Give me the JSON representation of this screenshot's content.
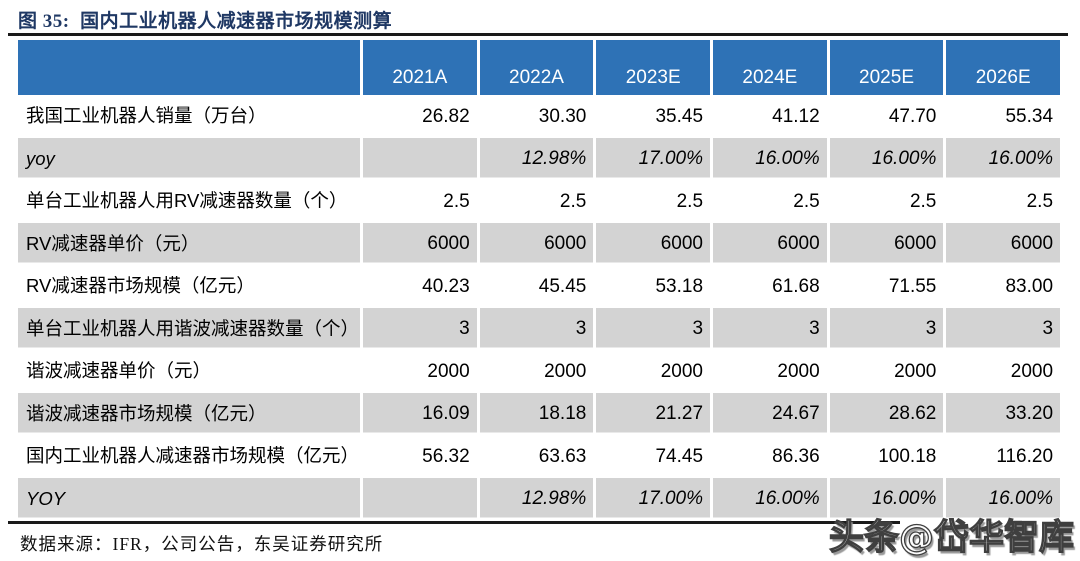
{
  "figure": {
    "title": "图 35:  国内工业机器人减速器市场规模测算",
    "source": "数据来源：IFR，公司公告，东吴证券研究所",
    "watermark": "头条@岱华智库"
  },
  "colors": {
    "header_bg": "#2E72B6",
    "shaded_row_bg": "#D3D3D3",
    "title_color": "#1F3864",
    "rule_color": "#1a1a1a"
  },
  "chart_data": {
    "type": "table",
    "title": "国内工业机器人减速器市场规模测算",
    "columns": [
      "",
      "2021A",
      "2022A",
      "2023E",
      "2024E",
      "2025E",
      "2026E"
    ],
    "rows": [
      {
        "label": "我国工业机器人销量（万台）",
        "values": [
          "26.82",
          "30.30",
          "35.45",
          "41.12",
          "47.70",
          "55.34"
        ]
      },
      {
        "label": "yoy",
        "values": [
          "",
          "12.98%",
          "17.00%",
          "16.00%",
          "16.00%",
          "16.00%"
        ]
      },
      {
        "label": "单台工业机器人用RV减速器数量（个）",
        "values": [
          "2.5",
          "2.5",
          "2.5",
          "2.5",
          "2.5",
          "2.5"
        ]
      },
      {
        "label": "RV减速器单价（元）",
        "values": [
          "6000",
          "6000",
          "6000",
          "6000",
          "6000",
          "6000"
        ]
      },
      {
        "label": "RV减速器市场规模（亿元）",
        "values": [
          "40.23",
          "45.45",
          "53.18",
          "61.68",
          "71.55",
          "83.00"
        ]
      },
      {
        "label": "单台工业机器人用谐波减速器数量（个）",
        "values": [
          "3",
          "3",
          "3",
          "3",
          "3",
          "3"
        ]
      },
      {
        "label": "谐波减速器单价（元）",
        "values": [
          "2000",
          "2000",
          "2000",
          "2000",
          "2000",
          "2000"
        ]
      },
      {
        "label": "谐波减速器市场规模（亿元）",
        "values": [
          "16.09",
          "18.18",
          "21.27",
          "24.67",
          "28.62",
          "33.20"
        ]
      },
      {
        "label": "国内工业机器人减速器市场规模（亿元）",
        "values": [
          "56.32",
          "63.63",
          "74.45",
          "86.36",
          "100.18",
          "116.20"
        ]
      },
      {
        "label": "YOY",
        "values": [
          "",
          "12.98%",
          "17.00%",
          "16.00%",
          "16.00%",
          "16.00%"
        ]
      }
    ]
  }
}
